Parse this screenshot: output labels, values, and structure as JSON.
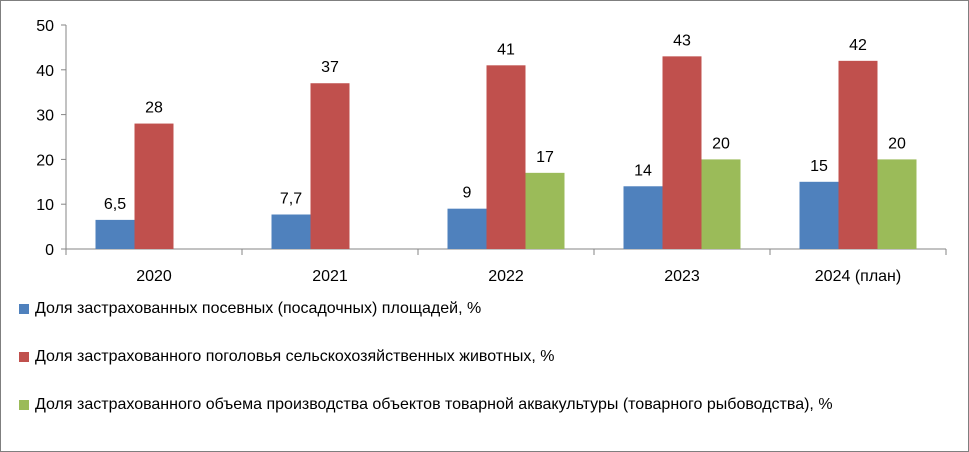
{
  "chart_data": {
    "type": "bar",
    "categories": [
      "2020",
      "2021",
      "2022",
      "2023",
      "2024 (план)"
    ],
    "series": [
      {
        "name": "Доля застрахованных посевных (посадочных) площадей, %",
        "color": "#4f81bd",
        "values": [
          6.5,
          7.7,
          9,
          14,
          15
        ],
        "labels": [
          "6,5",
          "7,7",
          "9",
          "14",
          "15"
        ]
      },
      {
        "name": "Доля застрахованного поголовья сельскохозяйственных животных, %",
        "color": "#c0504d",
        "values": [
          28,
          37,
          41,
          43,
          42
        ],
        "labels": [
          "28",
          "37",
          "41",
          "43",
          "42"
        ]
      },
      {
        "name": "Доля застрахованного объема производства объектов товарной аквакультуры (товарного рыбоводства), %",
        "color": "#9bbb59",
        "values": [
          null,
          null,
          17,
          20,
          20
        ],
        "labels": [
          "",
          "",
          "17",
          "20",
          "20"
        ]
      }
    ],
    "yticks": [
      "0",
      "10",
      "20",
      "30",
      "40",
      "50"
    ],
    "ylim": [
      0,
      50
    ],
    "grid": false,
    "legend_position": "bottom"
  }
}
